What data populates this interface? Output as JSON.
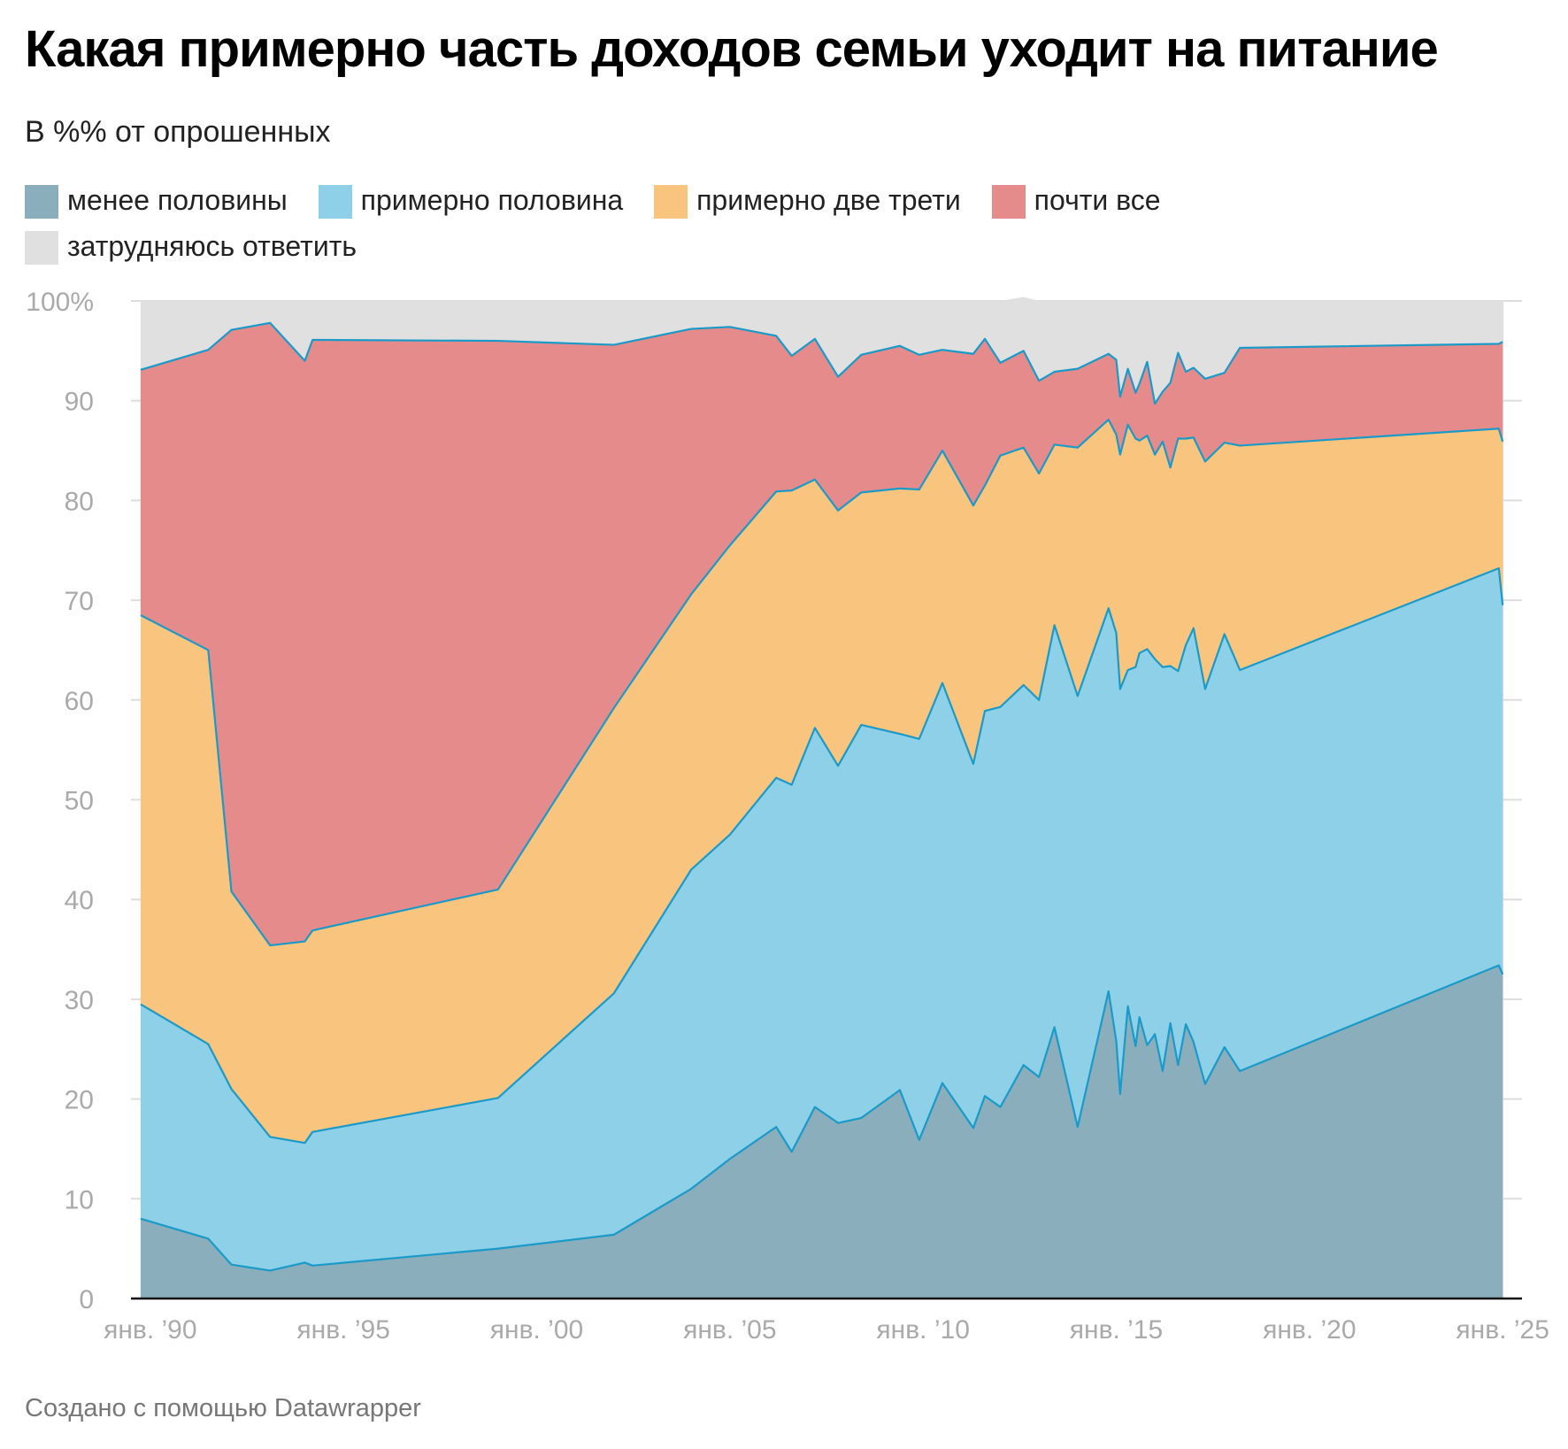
{
  "title": "Какая примерно часть доходов семьи уходит на питание",
  "subtitle": "В %% от опрошенных",
  "footer": "Создано с помощью Datawrapper",
  "colors": {
    "less_half": "#8baebc",
    "about_half": "#8dd0e8",
    "two_thirds": "#f9c47e",
    "almost_all": "#e58b8b",
    "hard_to_say": "#e0e0e0",
    "line": "#1a9ac8",
    "grid": "#dddddd",
    "tick": "#aaaaaa"
  },
  "chart_data": {
    "type": "area",
    "stacked": true,
    "title": "Какая примерно часть доходов семьи уходит на питание",
    "subtitle": "В %% от опрошенных",
    "ylim": [
      0,
      100
    ],
    "y_ticks": [
      0,
      10,
      20,
      30,
      40,
      50,
      60,
      70,
      80,
      90,
      100
    ],
    "y_tick_labels": [
      "0",
      "10",
      "20",
      "30",
      "40",
      "50",
      "60",
      "70",
      "80",
      "90",
      "100%"
    ],
    "x_ticks": [
      1990,
      1995,
      2000,
      2005,
      2010,
      2015,
      2020,
      2025
    ],
    "x_tick_labels": [
      "янв. ’90",
      "янв. ’95",
      "янв. ’00",
      "янв. ’05",
      "янв. ’10",
      "янв. ’15",
      "янв. ’20",
      "янв. ’25"
    ],
    "legend_position": "top",
    "x": [
      1989.75,
      1991.5,
      1992.1,
      1993.1,
      1994.0,
      1994.2,
      1999.0,
      2002.0,
      2004.0,
      2005.0,
      2006.2,
      2006.6,
      2007.2,
      2007.8,
      2008.4,
      2009.4,
      2009.9,
      2010.5,
      2011.3,
      2011.6,
      2012.0,
      2012.6,
      2013.0,
      2013.4,
      2014.0,
      2014.8,
      2015.0,
      2015.1,
      2015.3,
      2015.5,
      2015.6,
      2015.8,
      2016.0,
      2016.2,
      2016.4,
      2016.6,
      2016.8,
      2017.0,
      2017.3,
      2017.8,
      2018.2,
      2024.9,
      2025.0
    ],
    "series": [
      {
        "name": "менее половины",
        "color": "#8baebc",
        "values": [
          8,
          6,
          3.4,
          2.8,
          3.6,
          3.3,
          5,
          6.4,
          11,
          14,
          17.2,
          14.7,
          19.2,
          17.6,
          18.1,
          20.9,
          15.9,
          21.6,
          17.1,
          20.3,
          19.2,
          23.4,
          22.2,
          27.2,
          17.2,
          30.8,
          25.8,
          20.5,
          29.3,
          25.3,
          28.2,
          25.4,
          26.5,
          22.8,
          27.6,
          23.4,
          27.5,
          25.7,
          21.5,
          25.2,
          22.8,
          33.4,
          32.5
        ]
      },
      {
        "name": "примерно половина",
        "color": "#8dd0e8",
        "values": [
          21.5,
          19.5,
          17.6,
          13.4,
          12.0,
          13.4,
          15.1,
          24.2,
          32.0,
          32.5,
          35.0,
          36.8,
          38.0,
          35.8,
          39.4,
          35.7,
          40.2,
          40.1,
          36.5,
          38.6,
          40.1,
          38.1,
          37.8,
          40.3,
          43.2,
          38.4,
          40.9,
          40.6,
          33.7,
          38.0,
          36.5,
          39.7,
          37.6,
          40.5,
          35.8,
          39.5,
          38.0,
          41.5,
          39.6,
          41.4,
          40.2,
          39.8,
          37.0
        ]
      },
      {
        "name": "примерно две трети",
        "color": "#f9c47e",
        "values": [
          39.0,
          39.5,
          19.8,
          19.2,
          20.2,
          20.2,
          20.9,
          28.6,
          27.6,
          29.0,
          28.7,
          29.5,
          24.9,
          25.6,
          23.3,
          24.6,
          25.0,
          23.3,
          25.9,
          22.6,
          25.2,
          23.8,
          22.7,
          18.1,
          24.9,
          18.9,
          19.9,
          23.5,
          24.6,
          22.9,
          21.3,
          21.4,
          20.5,
          22.6,
          19.9,
          23.3,
          20.7,
          19.1,
          22.8,
          19.2,
          22.5,
          14.0,
          16.4
        ]
      },
      {
        "name": "почти все",
        "color": "#e58b8b",
        "values": [
          24.6,
          30.1,
          56.3,
          62.4,
          58.2,
          59.2,
          55.0,
          36.4,
          26.6,
          21.9,
          15.6,
          13.5,
          14.1,
          13.4,
          13.8,
          14.3,
          13.5,
          10.1,
          15.2,
          14.7,
          9.3,
          9.7,
          9.3,
          7.3,
          7.9,
          6.6,
          7.5,
          5.8,
          5.6,
          4.6,
          5.7,
          7.4,
          5.1,
          5.0,
          8.5,
          8.6,
          6.7,
          7.0,
          8.3,
          7.0,
          9.8,
          8.5,
          10.0
        ]
      },
      {
        "name": "затрудняюсь ответить",
        "color": "#e0e0e0",
        "values": [
          6.9,
          4.9,
          2.9,
          2.2,
          6.0,
          3.9,
          4.0,
          4.4,
          2.8,
          2.6,
          3.5,
          5.5,
          3.8,
          7.6,
          5.4,
          4.5,
          5.4,
          4.9,
          5.3,
          3.8,
          6.2,
          5.4,
          8.0,
          7.1,
          6.8,
          5.3,
          5.9,
          9.6,
          6.8,
          9.2,
          8.3,
          6.1,
          10.3,
          9.1,
          8.2,
          5.2,
          7.1,
          6.7,
          7.8,
          7.2,
          4.7,
          4.3,
          4.1
        ]
      }
    ]
  }
}
